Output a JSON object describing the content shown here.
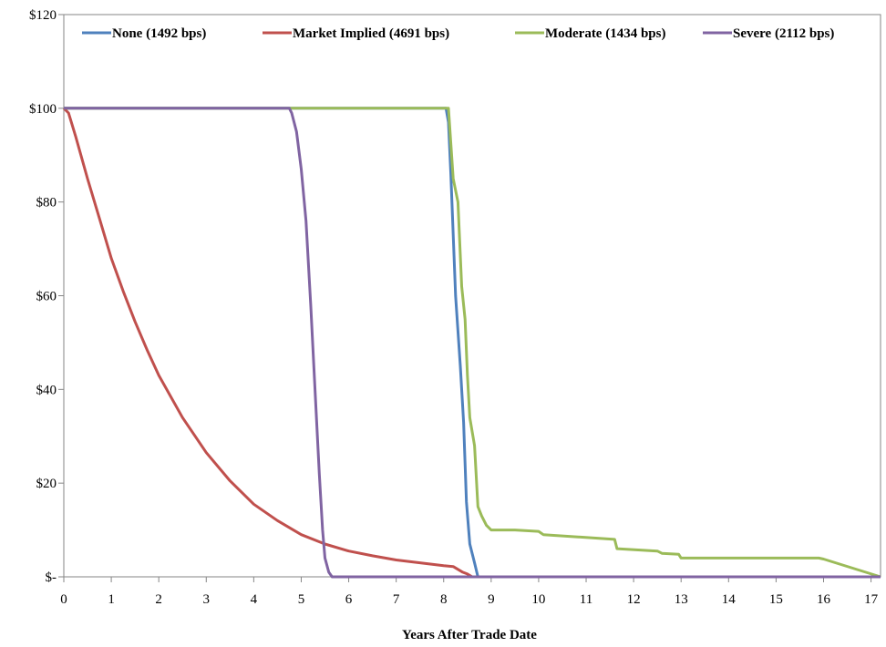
{
  "chart_data": {
    "type": "line",
    "xlabel": "Years After Trade Date",
    "ylabel": "",
    "xlim": [
      0,
      17.2
    ],
    "ylim": [
      0,
      120
    ],
    "x_ticks": [
      0,
      1,
      2,
      3,
      4,
      5,
      6,
      7,
      8,
      9,
      10,
      11,
      12,
      13,
      14,
      15,
      16,
      17
    ],
    "x_tick_labels": [
      "0",
      "1",
      "2",
      "3",
      "4",
      "5",
      "6",
      "7",
      "8",
      "9",
      "10",
      "11",
      "12",
      "13",
      "14",
      "15",
      "16",
      "17"
    ],
    "y_ticks": [
      0,
      20,
      40,
      60,
      80,
      100,
      120
    ],
    "y_tick_labels": [
      "$-",
      "$20",
      "$40",
      "$60",
      "$80",
      "$100",
      "$120"
    ],
    "grid": false,
    "legend_position": "top",
    "series": [
      {
        "name": "None (1492 bps)",
        "color": "#4f81bd",
        "points": [
          [
            0,
            100
          ],
          [
            8.05,
            100
          ],
          [
            8.1,
            97
          ],
          [
            8.15,
            86
          ],
          [
            8.25,
            60
          ],
          [
            8.35,
            45
          ],
          [
            8.42,
            33
          ],
          [
            8.48,
            16
          ],
          [
            8.55,
            7
          ],
          [
            8.65,
            3
          ],
          [
            8.72,
            0
          ],
          [
            17.2,
            0
          ]
        ]
      },
      {
        "name": "Market Implied (4691 bps)",
        "color": "#c0504d",
        "points": [
          [
            0,
            100
          ],
          [
            0.1,
            99
          ],
          [
            0.25,
            94
          ],
          [
            0.5,
            85
          ],
          [
            0.75,
            76.5
          ],
          [
            1,
            68
          ],
          [
            1.25,
            61
          ],
          [
            1.5,
            54.5
          ],
          [
            1.75,
            48.5
          ],
          [
            2,
            43
          ],
          [
            2.5,
            34
          ],
          [
            3,
            26.5
          ],
          [
            3.5,
            20.5
          ],
          [
            4,
            15.5
          ],
          [
            4.5,
            12
          ],
          [
            5,
            9
          ],
          [
            5.5,
            7
          ],
          [
            6,
            5.5
          ],
          [
            6.5,
            4.5
          ],
          [
            7,
            3.6
          ],
          [
            7.5,
            3
          ],
          [
            8,
            2.4
          ],
          [
            8.2,
            2.2
          ],
          [
            8.3,
            1.6
          ],
          [
            8.4,
            1
          ],
          [
            8.5,
            0.6
          ],
          [
            8.6,
            0
          ],
          [
            17.2,
            0
          ]
        ]
      },
      {
        "name": "Moderate (1434 bps)",
        "color": "#9bbb59",
        "points": [
          [
            0,
            100
          ],
          [
            8.05,
            100
          ],
          [
            8.1,
            100
          ],
          [
            8.2,
            85
          ],
          [
            8.3,
            80
          ],
          [
            8.38,
            62
          ],
          [
            8.45,
            55
          ],
          [
            8.5,
            43
          ],
          [
            8.55,
            34
          ],
          [
            8.65,
            28
          ],
          [
            8.72,
            15
          ],
          [
            8.8,
            13
          ],
          [
            8.9,
            11
          ],
          [
            9,
            10
          ],
          [
            9.5,
            10
          ],
          [
            10,
            9.7
          ],
          [
            10.1,
            9
          ],
          [
            11.6,
            8
          ],
          [
            11.65,
            6
          ],
          [
            12.5,
            5.5
          ],
          [
            12.6,
            5
          ],
          [
            12.95,
            4.8
          ],
          [
            13,
            4
          ],
          [
            15.9,
            4
          ],
          [
            16,
            3.8
          ],
          [
            17.2,
            0
          ]
        ]
      },
      {
        "name": "Severe (2112 bps)",
        "color": "#8064a2",
        "points": [
          [
            0,
            100
          ],
          [
            4.75,
            100
          ],
          [
            4.8,
            99
          ],
          [
            4.9,
            95
          ],
          [
            5,
            87
          ],
          [
            5.1,
            76
          ],
          [
            5.2,
            58
          ],
          [
            5.3,
            38
          ],
          [
            5.38,
            22
          ],
          [
            5.45,
            10
          ],
          [
            5.5,
            4
          ],
          [
            5.58,
            1
          ],
          [
            5.65,
            0
          ],
          [
            17.2,
            0
          ]
        ]
      }
    ]
  }
}
